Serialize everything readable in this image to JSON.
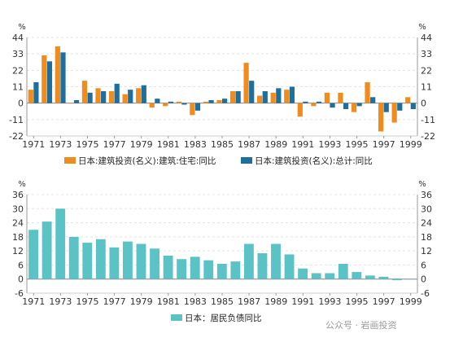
{
  "chart_data": [
    {
      "type": "bar",
      "categories": [
        "1971",
        "1972",
        "1973",
        "1974",
        "1975",
        "1976",
        "1977",
        "1978",
        "1979",
        "1980",
        "1981",
        "1982",
        "1983",
        "1984",
        "1985",
        "1986",
        "1987",
        "1988",
        "1989",
        "1990",
        "1991",
        "1992",
        "1993",
        "1994",
        "1995",
        "1996",
        "1997",
        "1998",
        "1999"
      ],
      "x_tick_labels": [
        "1971",
        "1973",
        "1975",
        "1977",
        "1979",
        "1981",
        "1983",
        "1985",
        "1987",
        "1989",
        "1991",
        "1993",
        "1995",
        "1997",
        "1999"
      ],
      "series": [
        {
          "name": "日本:建筑投资(名义):建筑:住宅:同比",
          "color": "#f08c1e",
          "values": [
            9,
            32,
            38,
            0,
            15,
            10,
            8,
            6,
            10,
            -3,
            -2,
            1,
            -8,
            1,
            2,
            8,
            27,
            5,
            7,
            9,
            -9,
            -2,
            7,
            7,
            -6,
            14,
            -19,
            -13,
            4
          ]
        },
        {
          "name": "日本:建筑投资(名义):总计:同比",
          "color": "#1f6f9e",
          "values": [
            14,
            28,
            34,
            2,
            7,
            8,
            13,
            9,
            12,
            3,
            1,
            -1,
            -5,
            2,
            3,
            8,
            15,
            8,
            10,
            11,
            1,
            1,
            -3,
            -4,
            -2,
            4,
            -6,
            -5,
            -4
          ]
        }
      ],
      "ylabel": "%",
      "ylim": [
        -22,
        44
      ],
      "yticks": [
        -22,
        -11,
        0,
        11,
        22,
        33,
        44
      ],
      "grid": true,
      "legend_position": "bottom"
    },
    {
      "type": "bar",
      "categories": [
        "1971",
        "1972",
        "1973",
        "1974",
        "1975",
        "1976",
        "1977",
        "1978",
        "1979",
        "1980",
        "1981",
        "1982",
        "1983",
        "1984",
        "1985",
        "1986",
        "1987",
        "1988",
        "1989",
        "1990",
        "1991",
        "1992",
        "1993",
        "1994",
        "1995",
        "1996",
        "1997",
        "1998",
        "1999"
      ],
      "x_tick_labels": [
        "1971",
        "1973",
        "1975",
        "1977",
        "1979",
        "1981",
        "1983",
        "1985",
        "1987",
        "1989",
        "1991",
        "1993",
        "1995",
        "1997",
        "1999"
      ],
      "series": [
        {
          "name": "日本：居民负债同比",
          "color": "#5bc2c6",
          "values": [
            21,
            24.5,
            30,
            18,
            15.5,
            17,
            13.5,
            16,
            15,
            13,
            10,
            8.5,
            9.5,
            8,
            6.5,
            7.5,
            15,
            11,
            15,
            10.5,
            4.5,
            2.5,
            2.5,
            6.5,
            3,
            1.5,
            1,
            -0.5,
            0
          ]
        }
      ],
      "ylabel": "%",
      "ylim": [
        -6,
        36
      ],
      "yticks": [
        -6,
        0,
        6,
        12,
        18,
        24,
        30,
        36
      ],
      "grid": true,
      "legend_position": "bottom"
    }
  ],
  "watermark": "公众号 · 岩画投资"
}
